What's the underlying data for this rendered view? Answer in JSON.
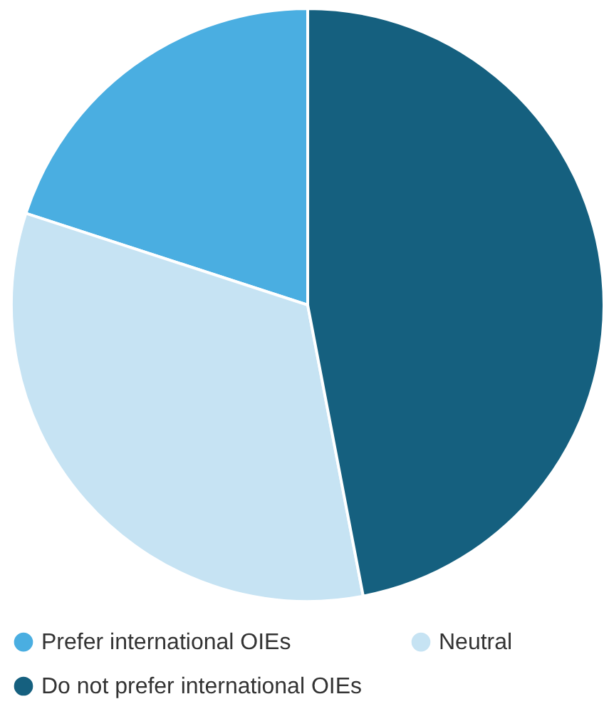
{
  "chart_data": {
    "type": "pie",
    "categories": [
      "Prefer international OIEs",
      "Neutral",
      "Do not prefer international OIEs"
    ],
    "values": [
      20,
      33,
      47
    ],
    "colors": [
      "#4aaee1",
      "#c6e3f3",
      "#15607f"
    ],
    "legend": "bottom"
  }
}
